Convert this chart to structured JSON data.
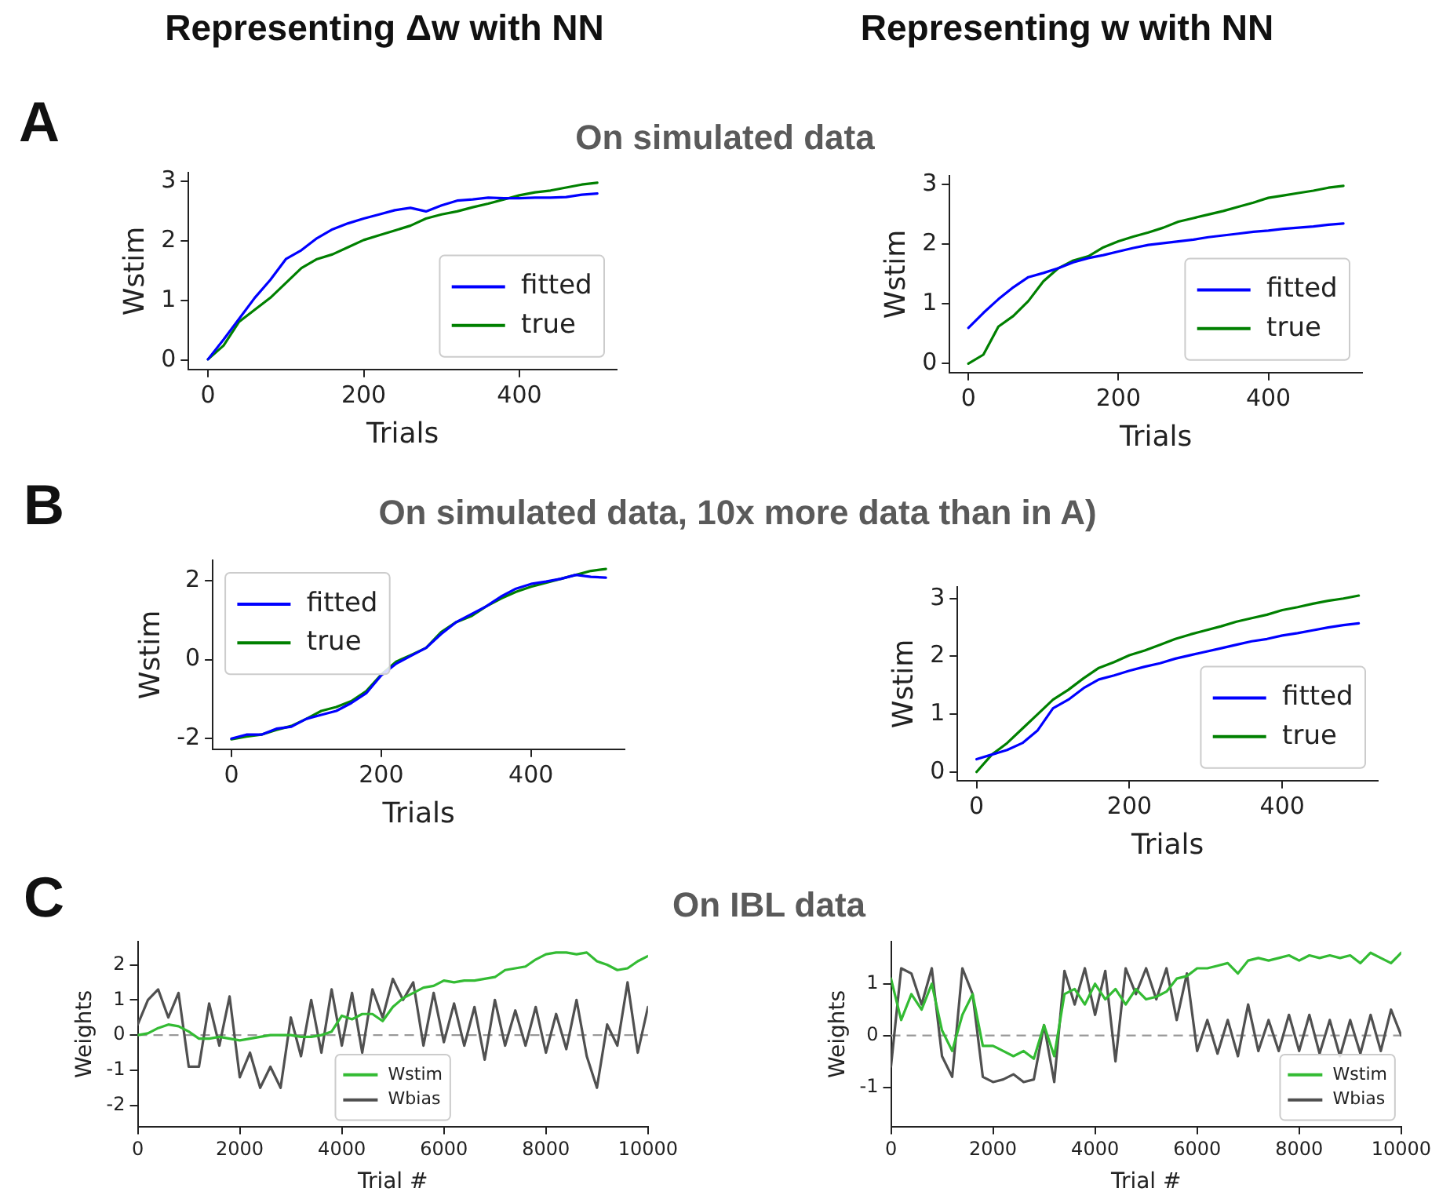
{
  "chart_data": [
    {
      "type": "line",
      "title": "On simulated data",
      "annotations": [
        "Representing Δw with NN",
        "A"
      ],
      "xlabel": "Trials",
      "ylabel": "Wstim",
      "xlim": [
        -25,
        525
      ],
      "xticks": [
        0,
        200,
        400
      ],
      "ylim": [
        -0.15,
        3.15
      ],
      "yticks": [
        0,
        1,
        2,
        3
      ],
      "grid": false,
      "legend": "bottom right",
      "marker": "none",
      "line_style": "solid",
      "x": [
        0,
        20,
        40,
        60,
        80,
        100,
        120,
        140,
        160,
        180,
        200,
        220,
        240,
        260,
        280,
        300,
        320,
        340,
        360,
        380,
        400,
        420,
        440,
        460,
        480,
        500
      ],
      "series": [
        {
          "name": "fitted",
          "color": "#0000ff",
          "values": [
            0.02,
            0.35,
            0.7,
            1.05,
            1.35,
            1.7,
            1.85,
            2.05,
            2.2,
            2.3,
            2.38,
            2.45,
            2.52,
            2.56,
            2.5,
            2.6,
            2.68,
            2.7,
            2.73,
            2.72,
            2.72,
            2.73,
            2.73,
            2.74,
            2.78,
            2.8
          ]
        },
        {
          "name": "true",
          "color": "#008000",
          "values": [
            0.02,
            0.25,
            0.65,
            0.85,
            1.05,
            1.3,
            1.55,
            1.7,
            1.78,
            1.9,
            2.02,
            2.1,
            2.18,
            2.26,
            2.38,
            2.45,
            2.5,
            2.57,
            2.63,
            2.7,
            2.77,
            2.82,
            2.85,
            2.9,
            2.95,
            2.98
          ]
        }
      ]
    },
    {
      "type": "line",
      "annotations": [
        "Representing w with NN"
      ],
      "xlabel": "Trials",
      "ylabel": "Wstim",
      "xlim": [
        -25,
        525
      ],
      "xticks": [
        0,
        200,
        400
      ],
      "ylim": [
        -0.15,
        3.15
      ],
      "yticks": [
        0,
        1,
        2,
        3
      ],
      "grid": false,
      "legend": "bottom right",
      "marker": "none",
      "line_style": "solid",
      "x": [
        0,
        20,
        40,
        60,
        80,
        100,
        120,
        140,
        160,
        180,
        200,
        220,
        240,
        260,
        280,
        300,
        320,
        340,
        360,
        380,
        400,
        420,
        440,
        460,
        480,
        500
      ],
      "series": [
        {
          "name": "fitted",
          "color": "#0000ff",
          "values": [
            0.6,
            0.85,
            1.08,
            1.28,
            1.45,
            1.52,
            1.6,
            1.7,
            1.77,
            1.82,
            1.88,
            1.94,
            1.99,
            2.02,
            2.05,
            2.08,
            2.12,
            2.15,
            2.18,
            2.21,
            2.23,
            2.26,
            2.28,
            2.3,
            2.33,
            2.35
          ]
        },
        {
          "name": "true",
          "color": "#008000",
          "values": [
            0,
            0.15,
            0.62,
            0.8,
            1.05,
            1.38,
            1.6,
            1.73,
            1.8,
            1.95,
            2.05,
            2.13,
            2.2,
            2.28,
            2.38,
            2.44,
            2.5,
            2.56,
            2.63,
            2.7,
            2.78,
            2.82,
            2.86,
            2.9,
            2.95,
            2.98
          ]
        }
      ]
    },
    {
      "type": "line",
      "title": "On simulated data, 10x more data than in A)",
      "annotations": [
        "B"
      ],
      "xlabel": "Trials",
      "ylabel": "Wstim",
      "xlim": [
        -25,
        525
      ],
      "xticks": [
        0,
        200,
        400
      ],
      "ylim": [
        -2.27,
        2.52
      ],
      "yticks": [
        -2,
        0,
        2
      ],
      "grid": false,
      "legend": "top left",
      "marker": "none",
      "line_style": "solid",
      "x": [
        0,
        20,
        40,
        60,
        80,
        100,
        120,
        140,
        160,
        180,
        200,
        220,
        240,
        260,
        280,
        300,
        320,
        340,
        360,
        380,
        400,
        420,
        440,
        460,
        480,
        500
      ],
      "series": [
        {
          "name": "fitted",
          "color": "#0000ff",
          "values": [
            -2,
            -1.9,
            -1.9,
            -1.75,
            -1.7,
            -1.5,
            -1.4,
            -1.3,
            -1.1,
            -0.85,
            -0.4,
            -0.1,
            0.1,
            0.3,
            0.65,
            0.95,
            1.15,
            1.35,
            1.6,
            1.8,
            1.92,
            1.98,
            2.05,
            2.15,
            2.1,
            2.08
          ]
        },
        {
          "name": "true",
          "color": "#008000",
          "values": [
            -2.02,
            -1.95,
            -1.9,
            -1.78,
            -1.68,
            -1.5,
            -1.3,
            -1.2,
            -1.05,
            -0.8,
            -0.38,
            -0.05,
            0.12,
            0.3,
            0.7,
            0.95,
            1.1,
            1.35,
            1.55,
            1.72,
            1.85,
            1.95,
            2.05,
            2.15,
            2.25,
            2.3
          ]
        }
      ]
    },
    {
      "type": "line",
      "xlabel": "Trials",
      "ylabel": "Wstim",
      "xlim": [
        -25,
        525
      ],
      "xticks": [
        0,
        200,
        400
      ],
      "ylim": [
        -0.15,
        3.2
      ],
      "yticks": [
        0,
        1,
        2,
        3
      ],
      "grid": false,
      "legend": "bottom right",
      "marker": "none",
      "line_style": "solid",
      "x": [
        0,
        20,
        40,
        60,
        80,
        100,
        120,
        140,
        160,
        180,
        200,
        220,
        240,
        260,
        280,
        300,
        320,
        340,
        360,
        380,
        400,
        420,
        440,
        460,
        480,
        500
      ],
      "series": [
        {
          "name": "fitted",
          "color": "#0000ff",
          "values": [
            0.22,
            0.3,
            0.38,
            0.5,
            0.72,
            1.1,
            1.25,
            1.45,
            1.6,
            1.67,
            1.75,
            1.82,
            1.88,
            1.96,
            2.02,
            2.08,
            2.14,
            2.2,
            2.26,
            2.3,
            2.36,
            2.4,
            2.45,
            2.5,
            2.54,
            2.57
          ]
        },
        {
          "name": "true",
          "color": "#008000",
          "values": [
            0,
            0.3,
            0.5,
            0.75,
            1,
            1.25,
            1.42,
            1.62,
            1.8,
            1.9,
            2.02,
            2.1,
            2.2,
            2.3,
            2.38,
            2.45,
            2.52,
            2.6,
            2.66,
            2.72,
            2.8,
            2.85,
            2.91,
            2.96,
            3,
            3.05
          ]
        }
      ]
    },
    {
      "type": "line",
      "title": "On IBL data",
      "annotations": [
        "C"
      ],
      "xlabel": "Trial #",
      "ylabel": "Weights",
      "xlim": [
        0,
        10000
      ],
      "xticks": [
        0,
        2000,
        4000,
        6000,
        8000,
        10000
      ],
      "ylim": [
        -2.6,
        2.65
      ],
      "yticks": [
        -2,
        -1,
        0,
        1,
        2
      ],
      "grid": false,
      "legend": "bottom",
      "marker": "none",
      "line_style": "solid",
      "ref_lines": [
        {
          "axis": "y",
          "value": 0,
          "color": "#999999",
          "line_style": "dashed"
        }
      ],
      "x": [
        0,
        200,
        400,
        600,
        800,
        1000,
        1200,
        1400,
        1600,
        1800,
        2000,
        2200,
        2400,
        2600,
        2800,
        3000,
        3200,
        3400,
        3600,
        3800,
        4000,
        4200,
        4400,
        4600,
        4800,
        5000,
        5200,
        5400,
        5600,
        5800,
        6000,
        6200,
        6400,
        6600,
        6800,
        7000,
        7200,
        7400,
        7600,
        7800,
        8000,
        8200,
        8400,
        8600,
        8800,
        9000,
        9200,
        9400,
        9600,
        9800,
        10000
      ],
      "series": [
        {
          "name": "Wstim",
          "color": "#33bb33",
          "values": [
            0,
            0.05,
            0.2,
            0.3,
            0.25,
            0.1,
            -0.1,
            -0.1,
            -0.05,
            -0.1,
            -0.15,
            -0.1,
            -0.05,
            0,
            0,
            0,
            -0.05,
            -0.05,
            0,
            0.1,
            0.55,
            0.45,
            0.6,
            0.6,
            0.4,
            0.8,
            1.05,
            1.2,
            1.35,
            1.4,
            1.55,
            1.5,
            1.55,
            1.55,
            1.6,
            1.65,
            1.85,
            1.9,
            1.95,
            2.15,
            2.3,
            2.35,
            2.35,
            2.3,
            2.35,
            2.1,
            2,
            1.85,
            1.9,
            2.1,
            2.25
          ]
        },
        {
          "name": "Wbias",
          "color": "#505050",
          "values": [
            0.3,
            1,
            1.3,
            0.5,
            1.2,
            -0.9,
            -0.9,
            0.9,
            -0.3,
            1.1,
            -1.2,
            -0.5,
            -1.5,
            -0.9,
            -1.5,
            0.5,
            -0.6,
            1,
            -0.5,
            1.3,
            -0.3,
            1.2,
            -0.5,
            1.3,
            0.5,
            1.6,
            1,
            1.5,
            -0.3,
            1.2,
            -0.2,
            0.9,
            -0.3,
            0.8,
            -0.7,
            1,
            -0.3,
            0.7,
            -0.3,
            0.8,
            -0.5,
            0.6,
            -0.4,
            1,
            -0.6,
            -1.5,
            0.3,
            -0.3,
            1.5,
            -0.5,
            0.8
          ]
        }
      ]
    },
    {
      "type": "line",
      "xlabel": "Trial #",
      "ylabel": "Weights",
      "xlim": [
        0,
        10000
      ],
      "xticks": [
        0,
        2000,
        4000,
        6000,
        8000,
        10000
      ],
      "ylim": [
        -1.76,
        1.81
      ],
      "yticks": [
        -1,
        0,
        1
      ],
      "grid": false,
      "legend": "bottom right",
      "marker": "none",
      "line_style": "solid",
      "ref_lines": [
        {
          "axis": "y",
          "value": 0,
          "color": "#999999",
          "line_style": "dashed"
        }
      ],
      "x": [
        0,
        200,
        400,
        600,
        800,
        1000,
        1200,
        1400,
        1600,
        1800,
        2000,
        2200,
        2400,
        2600,
        2800,
        3000,
        3200,
        3400,
        3600,
        3800,
        4000,
        4200,
        4400,
        4600,
        4800,
        5000,
        5200,
        5400,
        5600,
        5800,
        6000,
        6200,
        6400,
        6600,
        6800,
        7000,
        7200,
        7400,
        7600,
        7800,
        8000,
        8200,
        8400,
        8600,
        8800,
        9000,
        9200,
        9400,
        9600,
        9800,
        10000
      ],
      "series": [
        {
          "name": "Wstim",
          "color": "#33bb33",
          "values": [
            1.1,
            0.3,
            0.8,
            0.5,
            1,
            0.1,
            -0.3,
            0.4,
            0.8,
            -0.2,
            -0.2,
            -0.3,
            -0.4,
            -0.3,
            -0.45,
            0.2,
            -0.4,
            0.8,
            0.9,
            0.6,
            1,
            0.7,
            0.9,
            0.6,
            0.9,
            0.7,
            0.75,
            0.85,
            1.1,
            1.15,
            1.3,
            1.3,
            1.35,
            1.4,
            1.2,
            1.45,
            1.5,
            1.45,
            1.5,
            1.55,
            1.45,
            1.55,
            1.5,
            1.55,
            1.5,
            1.55,
            1.4,
            1.6,
            1.5,
            1.4,
            1.6
          ]
        },
        {
          "name": "Wbias",
          "color": "#505050",
          "values": [
            -0.6,
            1.3,
            1.2,
            0.6,
            1.3,
            -0.4,
            -0.8,
            1.3,
            0.8,
            -0.8,
            -0.9,
            -0.85,
            -0.75,
            -0.9,
            -0.85,
            0.2,
            -0.9,
            1.25,
            0.6,
            1.3,
            0.4,
            1.25,
            -0.5,
            1.3,
            0.8,
            1.3,
            0.7,
            1.3,
            0.3,
            1.2,
            -0.3,
            0.3,
            -0.35,
            0.3,
            -0.4,
            0.6,
            -0.3,
            0.3,
            -0.3,
            0.4,
            -0.3,
            0.4,
            -0.35,
            0.3,
            -0.4,
            0.3,
            -0.35,
            0.4,
            -0.3,
            0.5,
            0
          ]
        }
      ]
    }
  ]
}
